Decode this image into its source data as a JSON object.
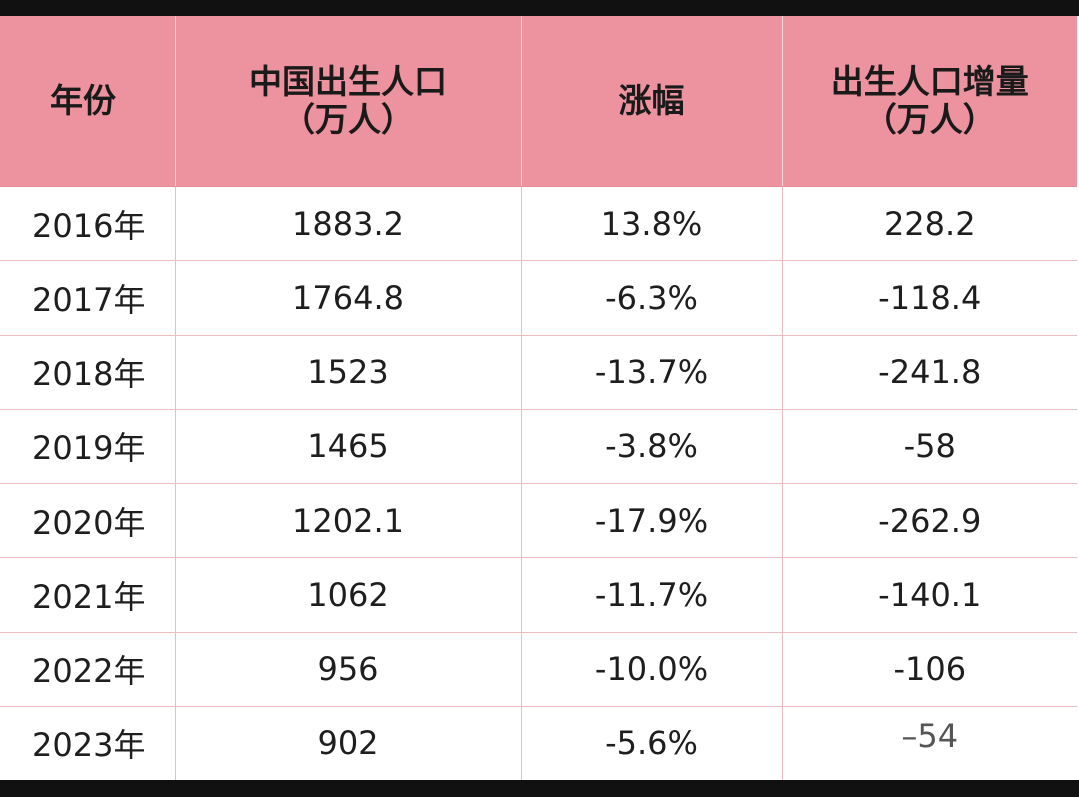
{
  "table": {
    "headers": [
      {
        "lines": [
          "年份"
        ]
      },
      {
        "lines": [
          "中国出生人口",
          "（万人）"
        ]
      },
      {
        "lines": [
          "涨幅"
        ]
      },
      {
        "lines": [
          "出生人口增量",
          "（万人）"
        ]
      }
    ],
    "rows": [
      {
        "year": "2016年",
        "births": "1883.2",
        "change": "13.8%",
        "increase": "228.2"
      },
      {
        "year": "2017年",
        "births": "1764.8",
        "change": "-6.3%",
        "increase": "-118.4"
      },
      {
        "year": "2018年",
        "births": "1523",
        "change": "-13.7%",
        "increase": "-241.8"
      },
      {
        "year": "2019年",
        "births": "1465",
        "change": "-3.8%",
        "increase": "-58"
      },
      {
        "year": "2020年",
        "births": "1202.1",
        "change": "-17.9%",
        "increase": "-262.9"
      },
      {
        "year": "2021年",
        "births": "1062",
        "change": "-11.7%",
        "increase": "-140.1"
      },
      {
        "year": "2022年",
        "births": "956",
        "change": "-10.0%",
        "increase": "-106"
      },
      {
        "year": "2023年",
        "births": "902",
        "change": "-5.6%",
        "increase": "–54"
      }
    ]
  },
  "colors": {
    "header_background": "#ec939f",
    "grid_line": "#ecbcc4",
    "frame": "#111111"
  }
}
